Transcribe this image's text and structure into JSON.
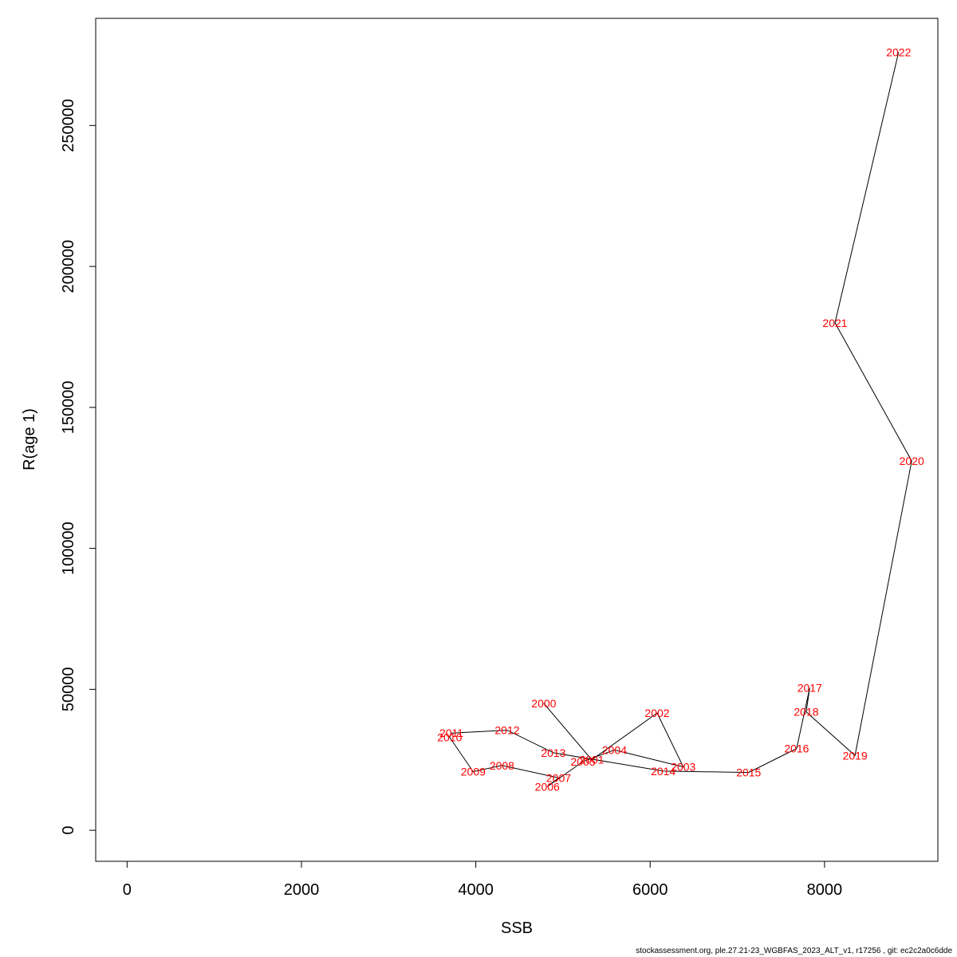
{
  "chart_data": {
    "type": "line",
    "xlabel": "SSB",
    "ylabel": "R(age 1)",
    "xlim": [
      -360,
      9300
    ],
    "ylim": [
      -11000,
      288000
    ],
    "xticks": [
      0,
      2000,
      4000,
      6000,
      8000
    ],
    "yticks": [
      0,
      50000,
      100000,
      150000,
      200000,
      250000
    ],
    "xtick_labels": [
      "0",
      "2000",
      "4000",
      "6000",
      "8000"
    ],
    "ytick_labels": [
      "0",
      "50000",
      "100000",
      "150000",
      "200000",
      "250000"
    ],
    "grid": false,
    "legend": "none",
    "line_color": "#000000",
    "label_color": "#ff0000",
    "points": [
      {
        "label": "2000",
        "x": 4780,
        "y": 45000
      },
      {
        "label": "2001",
        "x": 5330,
        "y": 25000
      },
      {
        "label": "2002",
        "x": 6080,
        "y": 41600
      },
      {
        "label": "2003",
        "x": 6380,
        "y": 22500
      },
      {
        "label": "2004",
        "x": 5590,
        "y": 28500
      },
      {
        "label": "2005",
        "x": 5230,
        "y": 24400
      },
      {
        "label": "2006",
        "x": 4820,
        "y": 15500
      },
      {
        "label": "2007",
        "x": 4950,
        "y": 18600
      },
      {
        "label": "2008",
        "x": 4300,
        "y": 23000
      },
      {
        "label": "2009",
        "x": 3970,
        "y": 20800
      },
      {
        "label": "2010",
        "x": 3700,
        "y": 33000
      },
      {
        "label": "2011",
        "x": 3720,
        "y": 34500
      },
      {
        "label": "2012",
        "x": 4360,
        "y": 35500
      },
      {
        "label": "2013",
        "x": 4890,
        "y": 27500
      },
      {
        "label": "2014",
        "x": 6150,
        "y": 21000
      },
      {
        "label": "2015",
        "x": 7130,
        "y": 20500
      },
      {
        "label": "2016",
        "x": 7680,
        "y": 29000
      },
      {
        "label": "2017",
        "x": 7830,
        "y": 50500
      },
      {
        "label": "2018",
        "x": 7790,
        "y": 42000
      },
      {
        "label": "2019",
        "x": 8350,
        "y": 26500
      },
      {
        "label": "2020",
        "x": 9000,
        "y": 131000
      },
      {
        "label": "2021",
        "x": 8120,
        "y": 180000
      },
      {
        "label": "2022",
        "x": 8850,
        "y": 276000
      }
    ]
  },
  "footer": "stockassessment.org, ple.27.21-23_WGBFAS_2023_ALT_v1, r17256 , git: ec2c2a0c6dde"
}
